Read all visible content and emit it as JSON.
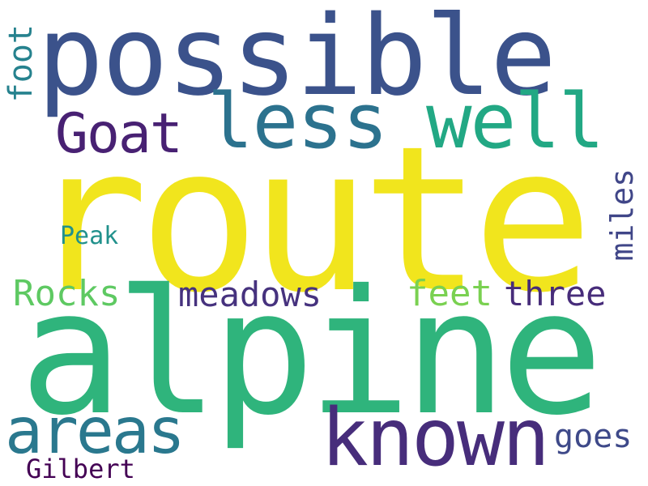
{
  "words": [
    {
      "text": "route",
      "color": "#f1e51d"
    },
    {
      "text": "alpine",
      "color": "#2fb47c"
    },
    {
      "text": "possible",
      "color": "#3b528b"
    },
    {
      "text": "known",
      "color": "#472d7b"
    },
    {
      "text": "less",
      "color": "#2c728e"
    },
    {
      "text": "well",
      "color": "#22a884"
    },
    {
      "text": "Goat",
      "color": "#482173"
    },
    {
      "text": "areas",
      "color": "#2a788e"
    },
    {
      "text": "meadows",
      "color": "#46327e"
    },
    {
      "text": "feet",
      "color": "#7ad151"
    },
    {
      "text": "three",
      "color": "#472c7a"
    },
    {
      "text": "Rocks",
      "color": "#5ec962"
    },
    {
      "text": "miles",
      "color": "#404688"
    },
    {
      "text": "goes",
      "color": "#3e4989"
    },
    {
      "text": "foot",
      "color": "#26828e"
    },
    {
      "text": "Peak",
      "color": "#21918c"
    },
    {
      "text": "Gilbert",
      "color": "#440154"
    }
  ]
}
